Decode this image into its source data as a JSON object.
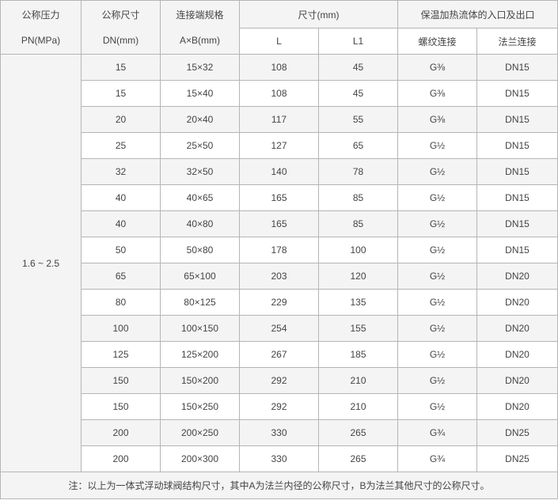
{
  "headers": {
    "pn": [
      "公称压力",
      "PN(MPa)"
    ],
    "dn": [
      "公称尺寸",
      "DN(mm)"
    ],
    "ab": [
      "连接端规格",
      "A×B(mm)"
    ],
    "size": "尺寸(mm)",
    "size_sub": [
      "L",
      "L1"
    ],
    "port": "保温加热流体的入口及出口",
    "port_sub": [
      "螺纹连接",
      "法兰连接"
    ]
  },
  "pn_value": "1.6 ~ 2.5",
  "rows": [
    [
      "15",
      "15×32",
      "108",
      "45",
      "G⅜",
      "DN15"
    ],
    [
      "15",
      "15×40",
      "108",
      "45",
      "G⅜",
      "DN15"
    ],
    [
      "20",
      "20×40",
      "117",
      "55",
      "G⅜",
      "DN15"
    ],
    [
      "25",
      "25×50",
      "127",
      "65",
      "G½",
      "DN15"
    ],
    [
      "32",
      "32×50",
      "140",
      "78",
      "G½",
      "DN15"
    ],
    [
      "40",
      "40×65",
      "165",
      "85",
      "G½",
      "DN15"
    ],
    [
      "40",
      "40×80",
      "165",
      "85",
      "G½",
      "DN15"
    ],
    [
      "50",
      "50×80",
      "178",
      "100",
      "G½",
      "DN15"
    ],
    [
      "65",
      "65×100",
      "203",
      "120",
      "G½",
      "DN20"
    ],
    [
      "80",
      "80×125",
      "229",
      "135",
      "G½",
      "DN20"
    ],
    [
      "100",
      "100×150",
      "254",
      "155",
      "G½",
      "DN20"
    ],
    [
      "125",
      "125×200",
      "267",
      "185",
      "G½",
      "DN20"
    ],
    [
      "150",
      "150×200",
      "292",
      "210",
      "G½",
      "DN20"
    ],
    [
      "150",
      "150×250",
      "292",
      "210",
      "G½",
      "DN20"
    ],
    [
      "200",
      "200×250",
      "330",
      "265",
      "G¾",
      "DN25"
    ],
    [
      "200",
      "200×300",
      "330",
      "265",
      "G¾",
      "DN25"
    ]
  ],
  "note": "注：以上为一体式浮动球阀结构尺寸，其中A为法兰内径的公称尺寸，B为法兰其他尺寸的公称尺寸。"
}
